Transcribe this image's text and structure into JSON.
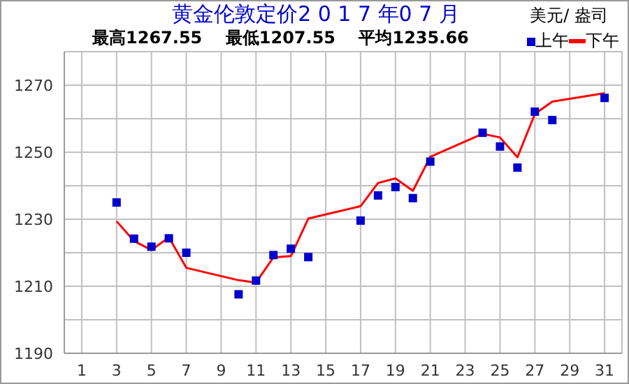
{
  "chart_data": {
    "type": "scatter",
    "title": "黄金伦敦定价2 0 1 7 年0 7 月",
    "subtitle": "最高1267.55    最低1207.55    平均1235.66",
    "ylabel": "美元/ 盎司",
    "x": [
      3,
      4,
      5,
      6,
      7,
      10,
      11,
      12,
      13,
      14,
      17,
      18,
      19,
      20,
      21,
      24,
      25,
      26,
      27,
      28,
      31
    ],
    "series": [
      {
        "name": "上午",
        "marker": "square",
        "color": "#0000cc",
        "values": [
          1235.0,
          1224.2,
          1221.8,
          1224.3,
          1220.0,
          1207.6,
          1211.7,
          1219.3,
          1221.2,
          1218.7,
          1229.6,
          1237.1,
          1239.6,
          1236.3,
          1247.2,
          1255.8,
          1251.7,
          1245.4,
          1262.1,
          1259.6,
          1266.2
        ]
      },
      {
        "name": "下午",
        "type": "line",
        "marker": "none",
        "line_style": "solid",
        "color": "#ff0000",
        "values": [
          1229.4,
          1223.5,
          1220.8,
          1224.6,
          1215.5,
          1211.8,
          1211.1,
          1218.6,
          1219.0,
          1230.2,
          1233.9,
          1240.8,
          1242.2,
          1238.5,
          1248.6,
          1255.5,
          1254.4,
          1248.5,
          1261.4,
          1265.1,
          1267.6
        ]
      }
    ],
    "xlim": [
      0,
      32
    ],
    "xticks": [
      1,
      3,
      5,
      7,
      9,
      11,
      13,
      15,
      17,
      19,
      21,
      23,
      25,
      27,
      29,
      31
    ],
    "ylim": [
      1190,
      1280
    ],
    "yticks": [
      1190,
      {
        "value": 1200,
        "label": null
      },
      1210,
      {
        "value": 1220,
        "label": null
      },
      1230,
      {
        "value": 1240,
        "label": null
      },
      1250,
      {
        "value": 1260,
        "label": null
      },
      1270,
      {
        "value": 1280,
        "label": null
      }
    ],
    "grid": true,
    "legend": "top right"
  }
}
